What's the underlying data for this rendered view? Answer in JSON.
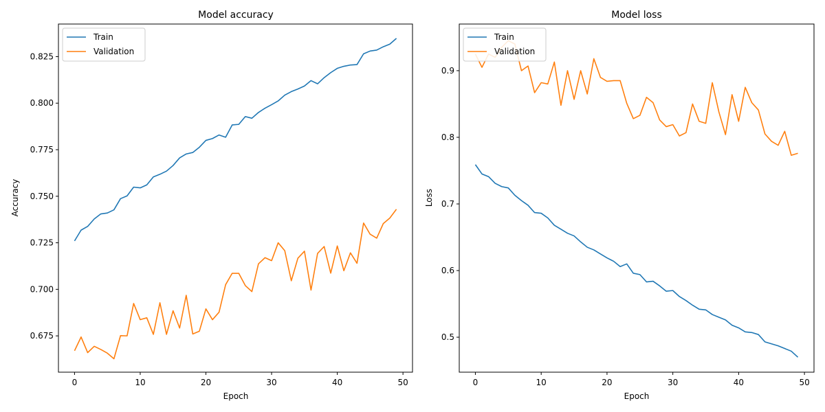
{
  "chart_data": [
    {
      "type": "line",
      "title": "Model accuracy",
      "xlabel": "Epoch",
      "ylabel": "Accuracy",
      "xlim": [
        -2.45,
        51.45
      ],
      "ylim": [
        0.6555,
        0.8425
      ],
      "xticks": [
        0,
        10,
        20,
        30,
        40,
        50
      ],
      "yticks": [
        0.675,
        0.7,
        0.725,
        0.75,
        0.775,
        0.8,
        0.825
      ],
      "ytick_decimals": 3,
      "legend_position": "upper-left",
      "x": [
        0,
        1,
        2,
        3,
        4,
        5,
        6,
        7,
        8,
        9,
        10,
        11,
        12,
        13,
        14,
        15,
        16,
        17,
        18,
        19,
        20,
        21,
        22,
        23,
        24,
        25,
        26,
        27,
        28,
        29,
        30,
        31,
        32,
        33,
        34,
        35,
        36,
        37,
        38,
        39,
        40,
        41,
        42,
        43,
        44,
        45,
        46,
        47,
        48,
        49
      ],
      "series": [
        {
          "name": "Train",
          "color": "#1f77b4",
          "values": [
            0.726,
            0.7318,
            0.7338,
            0.7378,
            0.7405,
            0.741,
            0.7427,
            0.7487,
            0.7502,
            0.7549,
            0.7545,
            0.7561,
            0.7604,
            0.7618,
            0.7635,
            0.7665,
            0.7706,
            0.7727,
            0.7735,
            0.7763,
            0.78,
            0.781,
            0.7829,
            0.7817,
            0.7883,
            0.7886,
            0.7928,
            0.7919,
            0.795,
            0.7973,
            0.7992,
            0.8012,
            0.8043,
            0.8062,
            0.8076,
            0.8092,
            0.8121,
            0.8104,
            0.8137,
            0.8164,
            0.8187,
            0.8198,
            0.8205,
            0.8207,
            0.8265,
            0.828,
            0.8285,
            0.8303,
            0.8317,
            0.8348
          ]
        },
        {
          "name": "Validation",
          "color": "#ff7f0e",
          "values": [
            0.667,
            0.6744,
            0.666,
            0.6694,
            0.6677,
            0.6657,
            0.6627,
            0.6751,
            0.675,
            0.6924,
            0.6837,
            0.6847,
            0.6758,
            0.6928,
            0.6758,
            0.6885,
            0.6792,
            0.6968,
            0.676,
            0.6775,
            0.6895,
            0.6837,
            0.6877,
            0.7025,
            0.7086,
            0.7086,
            0.702,
            0.6988,
            0.7137,
            0.717,
            0.7154,
            0.725,
            0.7208,
            0.7046,
            0.7167,
            0.7205,
            0.6996,
            0.7193,
            0.723,
            0.7087,
            0.7233,
            0.71,
            0.7196,
            0.714,
            0.7356,
            0.7296,
            0.7275,
            0.7353,
            0.7383,
            0.743
          ]
        }
      ]
    },
    {
      "type": "line",
      "title": "Model loss",
      "xlabel": "Epoch",
      "ylabel": "Loss",
      "xlim": [
        -2.45,
        51.45
      ],
      "ylim": [
        0.4475,
        0.97
      ],
      "xticks": [
        0,
        10,
        20,
        30,
        40,
        50
      ],
      "yticks": [
        0.5,
        0.6,
        0.7,
        0.8,
        0.9
      ],
      "ytick_decimals": 1,
      "legend_position": "upper-left",
      "x": [
        0,
        1,
        2,
        3,
        4,
        5,
        6,
        7,
        8,
        9,
        10,
        11,
        12,
        13,
        14,
        15,
        16,
        17,
        18,
        19,
        20,
        21,
        22,
        23,
        24,
        25,
        26,
        27,
        28,
        29,
        30,
        31,
        32,
        33,
        34,
        35,
        36,
        37,
        38,
        39,
        40,
        41,
        42,
        43,
        44,
        45,
        46,
        47,
        48,
        49
      ],
      "series": [
        {
          "name": "Train",
          "color": "#1f77b4",
          "values": [
            0.759,
            0.745,
            0.741,
            0.731,
            0.726,
            0.724,
            0.713,
            0.705,
            0.698,
            0.687,
            0.686,
            0.679,
            0.668,
            0.662,
            0.656,
            0.652,
            0.643,
            0.635,
            0.631,
            0.625,
            0.619,
            0.614,
            0.606,
            0.61,
            0.596,
            0.594,
            0.583,
            0.584,
            0.577,
            0.569,
            0.57,
            0.561,
            0.555,
            0.548,
            0.542,
            0.541,
            0.534,
            0.53,
            0.526,
            0.518,
            0.514,
            0.508,
            0.507,
            0.504,
            0.493,
            0.49,
            0.487,
            0.483,
            0.479,
            0.47
          ]
        },
        {
          "name": "Validation",
          "color": "#ff7f0e",
          "values": [
            0.925,
            0.905,
            0.925,
            0.92,
            0.935,
            0.945,
            0.94,
            0.9,
            0.907,
            0.867,
            0.882,
            0.88,
            0.913,
            0.848,
            0.9,
            0.857,
            0.9,
            0.865,
            0.918,
            0.89,
            0.884,
            0.885,
            0.885,
            0.851,
            0.828,
            0.833,
            0.86,
            0.852,
            0.826,
            0.816,
            0.819,
            0.802,
            0.807,
            0.85,
            0.824,
            0.821,
            0.882,
            0.838,
            0.804,
            0.864,
            0.824,
            0.875,
            0.852,
            0.841,
            0.805,
            0.794,
            0.788,
            0.809,
            0.773,
            0.776
          ]
        }
      ]
    }
  ]
}
